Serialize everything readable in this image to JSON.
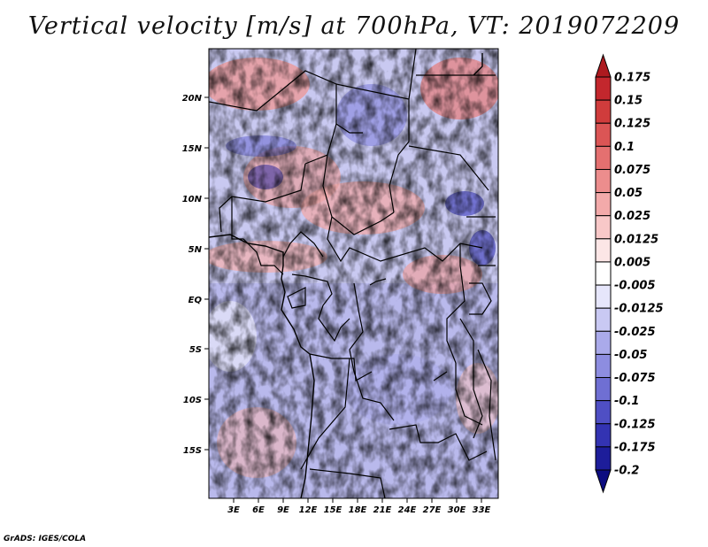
{
  "title": "Vertical velocity [m/s] at 700hPa, VT: 2019072209",
  "footer": "GrADS: IGES/COLA",
  "lat_labels": [
    "20N",
    "15N",
    "10N",
    "5N",
    "EQ",
    "5S",
    "10S",
    "15S"
  ],
  "lon_labels": [
    "3E",
    "6E",
    "9E",
    "12E",
    "15E",
    "18E",
    "21E",
    "24E",
    "27E",
    "30E",
    "33E"
  ],
  "colorbar": {
    "labels": [
      "0.175",
      "0.15",
      "0.125",
      "0.1",
      "0.075",
      "0.05",
      "0.025",
      "0.0125",
      "0.005",
      "-0.005",
      "-0.0125",
      "-0.025",
      "-0.05",
      "-0.075",
      "-0.1",
      "-0.125",
      "-0.175",
      "-0.2"
    ],
    "colors": [
      "#ad1a1f",
      "#c3272d",
      "#d03c3c",
      "#db5555",
      "#e47070",
      "#ec8d8d",
      "#f3aaaa",
      "#f8c8c8",
      "#fce6e6",
      "#ffffff",
      "#e6e6fb",
      "#c9c9f3",
      "#aaaaea",
      "#8d8de0",
      "#6f6fd3",
      "#4f4fc4",
      "#3333b2",
      "#1d1d9a",
      "#0c0c80"
    ]
  }
}
